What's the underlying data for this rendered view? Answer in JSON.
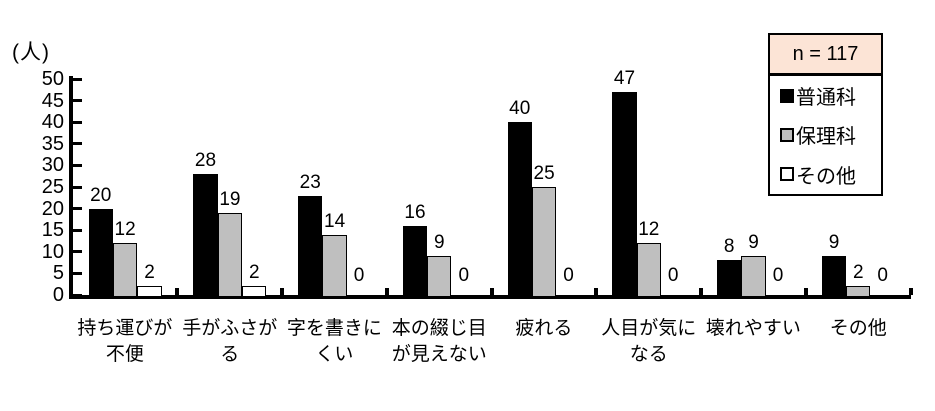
{
  "figure": {
    "unit_label": "(人)",
    "sample_size_label": "n = 117"
  },
  "chart_data": {
    "type": "bar",
    "title": "",
    "ylabel": "(人)",
    "xlabel": "",
    "ylim": [
      0,
      50
    ],
    "ytick_step": 5,
    "grid": false,
    "legend_position": "top-right",
    "annotation": "n = 117",
    "categories": [
      "持ち運びが不便",
      "手がふさがる",
      "字を書きにくい",
      "本の綴じ目が見えない",
      "疲れる",
      "人目が気になる",
      "壊れやすい",
      "その他"
    ],
    "category_label_lines": [
      [
        "持ち運びが",
        "不便"
      ],
      [
        "手がふさが",
        "る"
      ],
      [
        "字を書きに",
        "くい"
      ],
      [
        "本の綴じ目",
        "が見えない"
      ],
      [
        "疲れる"
      ],
      [
        "人目が気に",
        "なる"
      ],
      [
        "壊れやすい"
      ],
      [
        "その他"
      ]
    ],
    "series": [
      {
        "name": "普通科",
        "color": "#000000",
        "values": [
          20,
          28,
          23,
          16,
          40,
          47,
          8,
          9
        ]
      },
      {
        "name": "保理科",
        "color": "#bfbfbf",
        "values": [
          12,
          19,
          14,
          9,
          25,
          12,
          9,
          2
        ]
      },
      {
        "name": "その他",
        "color": "#ffffff",
        "values": [
          2,
          2,
          0,
          0,
          0,
          0,
          0,
          0
        ]
      }
    ],
    "colors": {
      "annotation_bg": "#fce4d6",
      "axis": "#000000",
      "text": "#000000"
    }
  }
}
